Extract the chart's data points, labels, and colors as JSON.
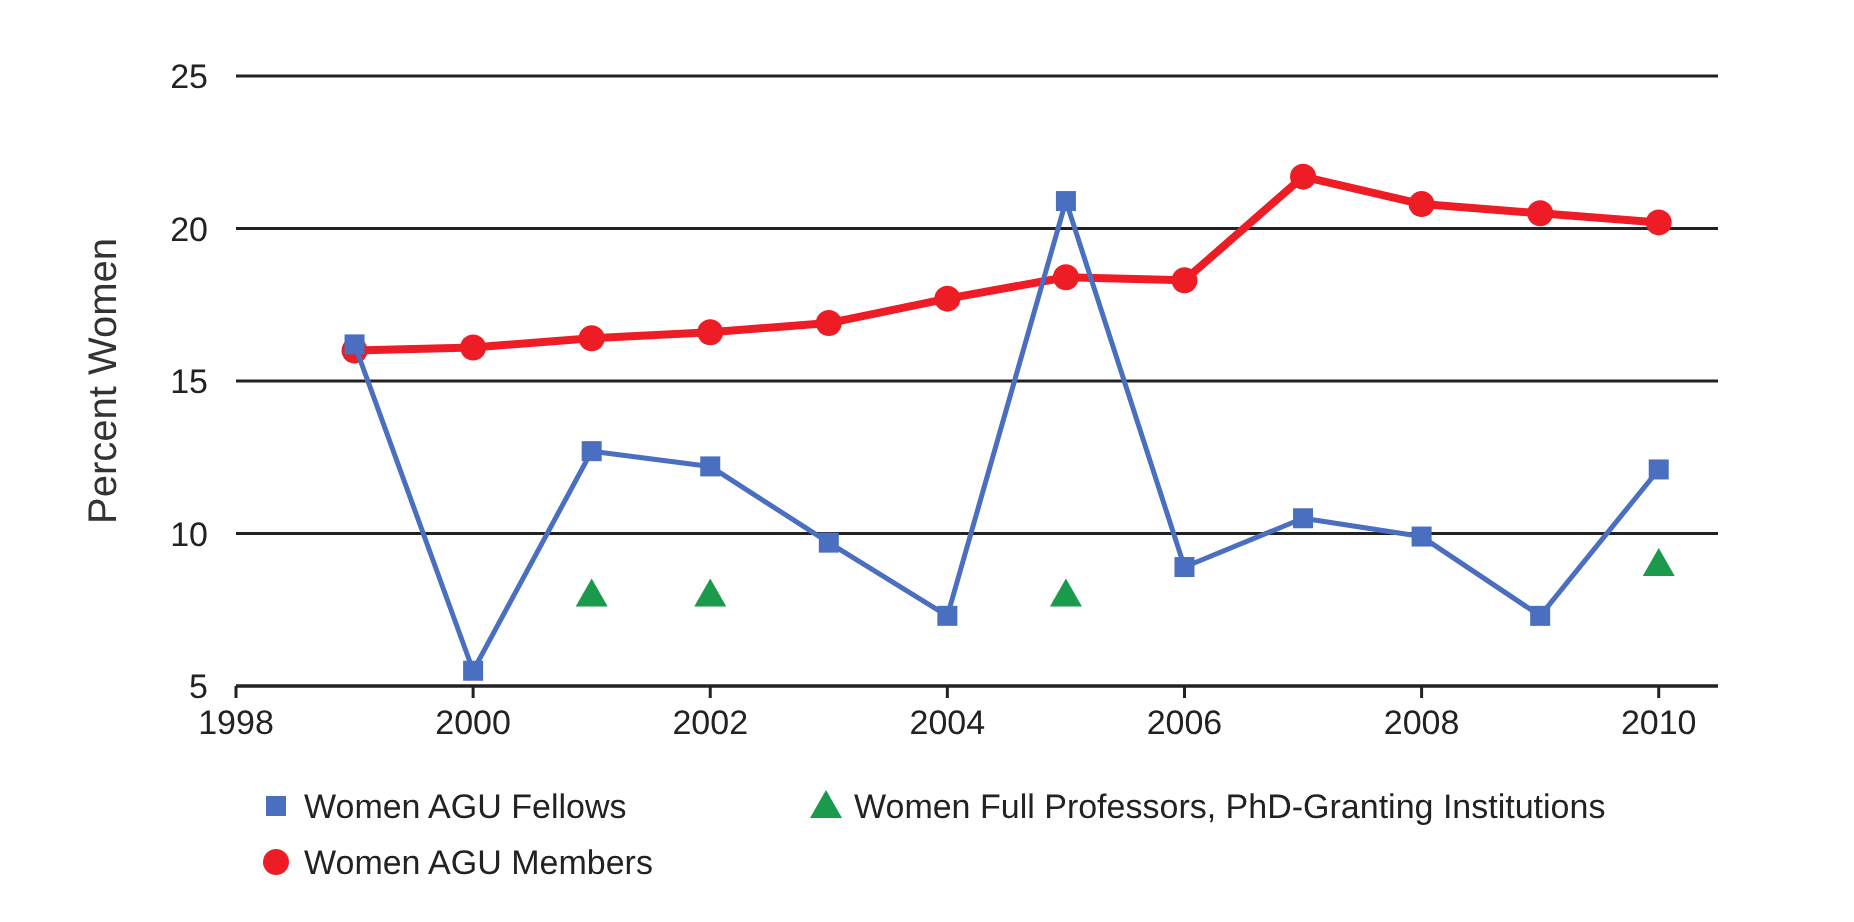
{
  "chart_data": {
    "type": "line",
    "ylabel": "Percent Women",
    "x": [
      1999,
      2000,
      2001,
      2002,
      2003,
      2004,
      2005,
      2006,
      2007,
      2008,
      2009,
      2010
    ],
    "xlim": [
      1998,
      2010.5
    ],
    "xticks": [
      1998,
      2000,
      2002,
      2004,
      2006,
      2008,
      2010
    ],
    "ylim": [
      5,
      25
    ],
    "yticks": [
      5,
      10,
      15,
      20,
      25
    ],
    "grid": "y",
    "legend": "bottom",
    "series": [
      {
        "name": "Women AGU Fellows",
        "color": "#4a6fc0",
        "marker": "square",
        "values": [
          16.2,
          5.5,
          12.7,
          12.2,
          9.7,
          7.3,
          20.9,
          8.9,
          10.5,
          9.9,
          7.3,
          12.1
        ]
      },
      {
        "name": "Women AGU Members",
        "color": "#ee1c24",
        "marker": "circle",
        "values": [
          16.0,
          16.1,
          16.4,
          16.6,
          16.9,
          17.7,
          18.4,
          18.3,
          21.7,
          20.8,
          20.5,
          20.2
        ]
      },
      {
        "name": "Women Full Professors, PhD-Granting Institutions",
        "type": "scatter",
        "color": "#1a9a4a",
        "marker": "triangle",
        "x": [
          2001,
          2002,
          2005,
          2010
        ],
        "values": [
          8.0,
          8.0,
          8.0,
          9.0
        ]
      }
    ]
  }
}
